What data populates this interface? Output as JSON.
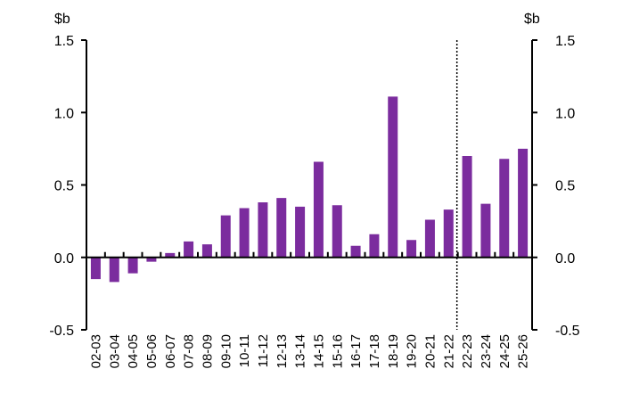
{
  "chart_data": {
    "type": "bar",
    "y_unit_left": "$b",
    "y_unit_right": "$b",
    "ylim": [
      -0.5,
      1.5
    ],
    "yticks": [
      "1.5",
      "1.0",
      "0.5",
      "0.0",
      "-0.5"
    ],
    "ytick_values": [
      1.5,
      1.0,
      0.5,
      0.0,
      -0.5
    ],
    "categories": [
      "02-03",
      "03-04",
      "04-05",
      "05-06",
      "06-07",
      "07-08",
      "08-09",
      "09-10",
      "10-11",
      "11-12",
      "12-13",
      "13-14",
      "14-15",
      "15-16",
      "16-17",
      "17-18",
      "18-19",
      "19-20",
      "20-21",
      "21-22",
      "22-23",
      "23-24",
      "24-25",
      "25-26"
    ],
    "values": [
      -0.15,
      -0.17,
      -0.11,
      -0.03,
      0.03,
      0.11,
      0.09,
      0.29,
      0.34,
      0.38,
      0.41,
      0.35,
      0.66,
      0.36,
      0.08,
      0.16,
      1.11,
      0.12,
      0.26,
      0.33,
      0.7,
      0.37,
      0.68,
      0.75
    ],
    "bar_color": "#7b2c9e",
    "projection_marker_after": "21-22",
    "grid": false
  }
}
